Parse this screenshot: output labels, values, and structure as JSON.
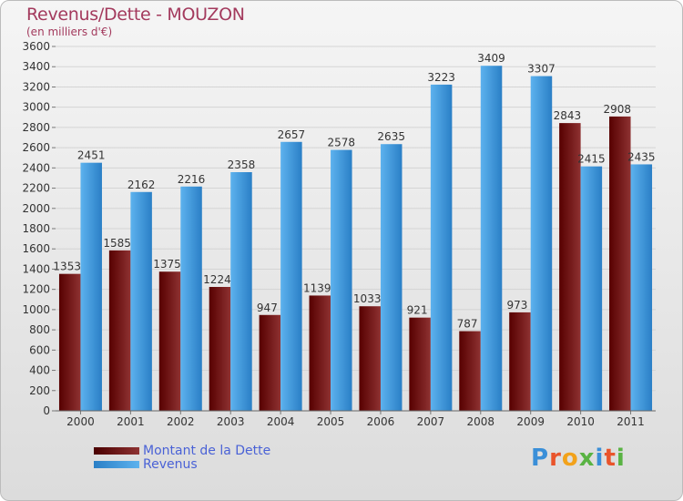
{
  "title": "Revenus/Dette - MOUZON",
  "subtitle": "(en milliers d'€)",
  "legend": {
    "items": [
      {
        "label": "Montant de la Dette",
        "color": "#6b0b0b"
      },
      {
        "label": "Revenus",
        "color": "#4b9fe0"
      }
    ]
  },
  "logo": {
    "letters": [
      "P",
      "r",
      "o",
      "x",
      "i",
      "t",
      "i"
    ]
  },
  "colors": {
    "dette_dark": "#570000",
    "dette_light": "#8e3232",
    "revenus_dark": "#2a7fc6",
    "revenus_light": "#5db2ee",
    "grid": "#d4d4d4",
    "axis_text": "#333333",
    "title": "#a33a5d"
  },
  "chart_data": {
    "type": "bar",
    "categories": [
      "2000",
      "2001",
      "2002",
      "2003",
      "2004",
      "2005",
      "2006",
      "2007",
      "2008",
      "2009",
      "2010",
      "2011"
    ],
    "series": [
      {
        "name": "Montant de la Dette",
        "values": [
          1353,
          1585,
          1375,
          1224,
          947,
          1139,
          1033,
          921,
          787,
          973,
          2843,
          2908
        ]
      },
      {
        "name": "Revenus",
        "values": [
          2451,
          2162,
          2216,
          2358,
          2657,
          2578,
          2635,
          3223,
          3409,
          3307,
          2415,
          2435
        ]
      }
    ],
    "ylim": [
      0,
      3600
    ],
    "yticks": [
      0,
      200,
      400,
      600,
      800,
      1000,
      1200,
      1400,
      1600,
      1800,
      2000,
      2200,
      2400,
      2600,
      2800,
      3000,
      3200,
      3400,
      3600
    ],
    "grid": true,
    "legend_position": "bottom-left"
  }
}
